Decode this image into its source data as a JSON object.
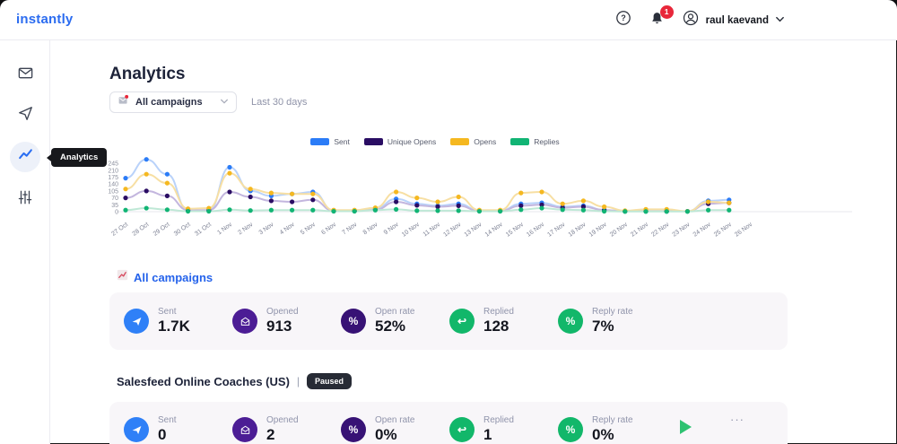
{
  "topbar": {
    "logo": "instantly",
    "notification_count": "1",
    "user_name": "raul kaevand"
  },
  "sidebar": {
    "tooltip": "Analytics"
  },
  "header": {
    "title": "Analytics",
    "campaign_filter": "All campaigns",
    "date_range": "Last 30 days"
  },
  "chart_data": {
    "type": "line",
    "title": "",
    "xlabel": "",
    "ylabel": "",
    "grid": false,
    "legend_position": "top",
    "ylim": [
      0,
      280
    ],
    "yticks": [
      0,
      35,
      70,
      105,
      140,
      175,
      210,
      245
    ],
    "categories": [
      "27 Oct",
      "28 Oct",
      "29 Oct",
      "30 Oct",
      "31 Oct",
      "1 Nov",
      "2 Nov",
      "3 Nov",
      "4 Nov",
      "5 Nov",
      "6 Nov",
      "7 Nov",
      "8 Nov",
      "9 Nov",
      "10 Nov",
      "11 Nov",
      "12 Nov",
      "13 Nov",
      "14 Nov",
      "15 Nov",
      "16 Nov",
      "17 Nov",
      "18 Nov",
      "19 Nov",
      "20 Nov",
      "21 Nov",
      "22 Nov",
      "23 Nov",
      "24 Nov",
      "25 Nov",
      "26 Nov"
    ],
    "series": [
      {
        "name": "Sent",
        "color": "#2b7cf7",
        "line_color": "#b9d2fa",
        "values": [
          170,
          265,
          190,
          5,
          5,
          225,
          105,
          80,
          90,
          100,
          5,
          5,
          15,
          65,
          40,
          30,
          40,
          5,
          5,
          40,
          45,
          25,
          30,
          8,
          2,
          2,
          2,
          2,
          55,
          60,
          null
        ]
      },
      {
        "name": "Unique Opens",
        "color": "#2a0d63",
        "line_color": "#c3b6de",
        "values": [
          70,
          105,
          80,
          8,
          8,
          100,
          75,
          55,
          50,
          60,
          4,
          4,
          10,
          50,
          32,
          25,
          30,
          4,
          4,
          30,
          35,
          20,
          25,
          8,
          2,
          2,
          2,
          2,
          40,
          45,
          null
        ]
      },
      {
        "name": "Opens",
        "color": "#f5b820",
        "line_color": "#f7dfa3",
        "values": [
          115,
          190,
          145,
          15,
          18,
          195,
          115,
          95,
          90,
          90,
          8,
          8,
          20,
          100,
          70,
          50,
          75,
          8,
          8,
          95,
          100,
          40,
          55,
          25,
          5,
          12,
          12,
          2,
          50,
          45,
          null
        ]
      },
      {
        "name": "Replies",
        "color": "#11b474",
        "line_color": "#bfe8d6",
        "values": [
          8,
          18,
          10,
          2,
          2,
          10,
          6,
          8,
          8,
          8,
          2,
          2,
          8,
          12,
          5,
          5,
          5,
          2,
          2,
          10,
          18,
          10,
          8,
          2,
          1,
          1,
          1,
          1,
          8,
          8,
          null
        ]
      }
    ]
  },
  "summary": {
    "title": "All campaigns",
    "stats": [
      {
        "label": "Sent",
        "value": "1.7K",
        "color": "#2f80f7",
        "icon": "send"
      },
      {
        "label": "Opened",
        "value": "913",
        "color": "#4c1d95",
        "icon": "envelope-open"
      },
      {
        "label": "Open rate",
        "value": "52%",
        "color": "#371275",
        "icon": "percent"
      },
      {
        "label": "Replied",
        "value": "128",
        "color": "#12b76a",
        "icon": "reply"
      },
      {
        "label": "Reply rate",
        "value": "7%",
        "color": "#12b76a",
        "icon": "percent"
      }
    ]
  },
  "campaign": {
    "name": "Salesfeed Online Coaches (US)",
    "separator": "|",
    "status": "Paused",
    "more_label": "···",
    "stats": [
      {
        "label": "Sent",
        "value": "0",
        "color": "#2f80f7",
        "icon": "send"
      },
      {
        "label": "Opened",
        "value": "2",
        "color": "#4c1d95",
        "icon": "envelope-open"
      },
      {
        "label": "Open rate",
        "value": "0%",
        "color": "#371275",
        "icon": "percent"
      },
      {
        "label": "Replied",
        "value": "1",
        "color": "#12b76a",
        "icon": "reply"
      },
      {
        "label": "Reply rate",
        "value": "0%",
        "color": "#12b76a",
        "icon": "percent"
      }
    ]
  }
}
